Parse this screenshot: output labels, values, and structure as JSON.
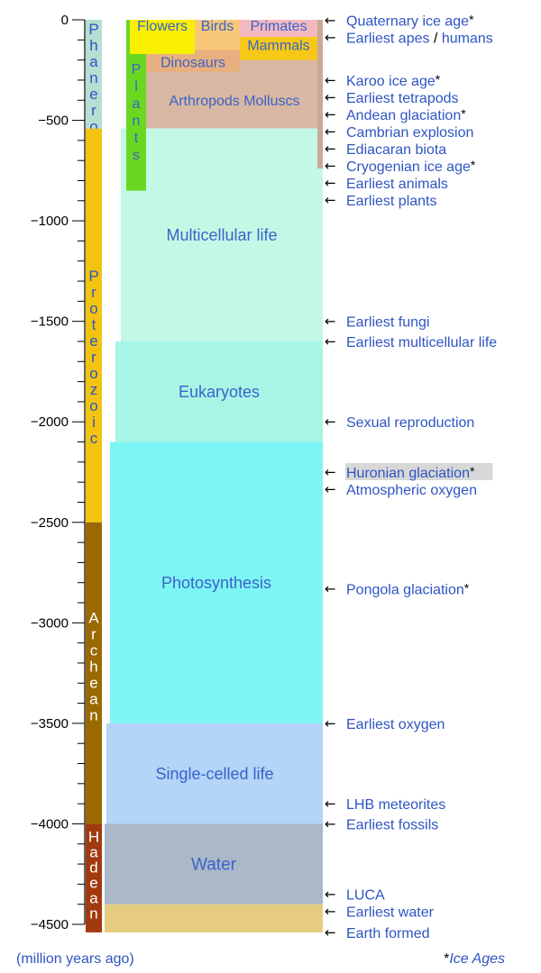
{
  "axis": {
    "ticks": [
      {
        "value": 0,
        "label": "0"
      },
      {
        "value": -500,
        "label": "−500"
      },
      {
        "value": -1000,
        "label": "−1000"
      },
      {
        "value": -1500,
        "label": "−1500"
      },
      {
        "value": -2000,
        "label": "−2000"
      },
      {
        "value": -2500,
        "label": "−2500"
      },
      {
        "value": -3000,
        "label": "−3000"
      },
      {
        "value": -3500,
        "label": "−3500"
      },
      {
        "value": -4000,
        "label": "−4000"
      },
      {
        "value": -4500,
        "label": "−4500"
      }
    ],
    "minor_step": 100,
    "range": [
      -4540,
      0
    ],
    "unit_label": "(million years ago)"
  },
  "eons": [
    {
      "name": "Phanerozoic",
      "start": -541,
      "end": 0,
      "color": "#b6dfd4",
      "text_color": "#2f55c2"
    },
    {
      "name": "Proterozoic",
      "start": -2500,
      "end": -541,
      "color": "#f2c40f",
      "text_color": "#2f55c2"
    },
    {
      "name": "Archean",
      "start": -4000,
      "end": -2500,
      "color": "#9a6a00",
      "text_color": "#ffffff"
    },
    {
      "name": "Hadean",
      "start": -4540,
      "end": -4000,
      "color": "#a23a10",
      "text_color": "#ffffff"
    }
  ],
  "regions": [
    {
      "label": "",
      "start": -4540,
      "end": -4400,
      "color": "#e6cc7e"
    },
    {
      "label": "Water",
      "start": -4400,
      "end": -4000,
      "color": "#aab8c8"
    },
    {
      "label": "Single-celled life",
      "start": -4000,
      "end": -3500,
      "color": "#b4d4f8"
    },
    {
      "label": "Photosynthesis",
      "start": -3500,
      "end": -2100,
      "color": "#7ef5f5"
    },
    {
      "label": "Eukaryotes",
      "start": -2100,
      "end": -1600,
      "color": "#a8f5e6"
    },
    {
      "label": "Multicellular life",
      "start": -1600,
      "end": -540,
      "color": "#c4f8e6"
    },
    {
      "label": "Arthropods Molluscs",
      "start": -540,
      "end": -170,
      "color": "#d8b8a2"
    },
    {
      "label": "Dinosaurs",
      "start": -260,
      "end": -66,
      "color": "#e8b080"
    },
    {
      "label": "Mammals",
      "start": -200,
      "end": 0,
      "color": "#f8c818"
    },
    {
      "label": "Plants",
      "start": -850,
      "end": 0,
      "color": "#6ad820"
    },
    {
      "label": "Flowers",
      "start": -170,
      "end": 0,
      "color": "#f8f000"
    },
    {
      "label": "Birds",
      "start": -150,
      "end": 0,
      "color": "#f8c878"
    },
    {
      "label": "Primates",
      "start": -85,
      "end": 0,
      "color": "#f4b8c0"
    }
  ],
  "events": [
    {
      "label": "Quaternary ice age",
      "value": -2.6,
      "ice_age": true,
      "color": "#2f55c2",
      "highlight": false
    },
    {
      "label": "Earliest apes",
      "label2": "humans",
      "value": -25,
      "ice_age": false,
      "color": "#2f55c2",
      "highlight": false
    },
    {
      "label": "Karoo ice age",
      "value": -300,
      "ice_age": true,
      "color": "#2f55c2",
      "highlight": false
    },
    {
      "label": "Earliest tetrapods",
      "value": -370,
      "ice_age": false,
      "color": "#2f55c2",
      "highlight": false
    },
    {
      "label": "Andean glaciation",
      "value": -445,
      "ice_age": true,
      "color": "#2f55c2",
      "highlight": false
    },
    {
      "label": "Cambrian explosion",
      "value": -530,
      "ice_age": false,
      "color": "#2f55c2",
      "highlight": false
    },
    {
      "label": "Ediacaran biota",
      "value": -610,
      "ice_age": false,
      "color": "#2f55c2",
      "highlight": false
    },
    {
      "label": "Cryogenian ice age",
      "value": -680,
      "ice_age": true,
      "color": "#2f55c2",
      "highlight": false
    },
    {
      "label": "Earliest animals",
      "value": -750,
      "ice_age": false,
      "color": "#2f55c2",
      "highlight": false
    },
    {
      "label": "Earliest plants",
      "value": -850,
      "ice_age": false,
      "color": "#2f55c2",
      "highlight": false
    },
    {
      "label": "Earliest fungi",
      "value": -1500,
      "ice_age": false,
      "color": "#2f55c2",
      "highlight": false
    },
    {
      "label": "Earliest multicellular life",
      "value": -1600,
      "ice_age": false,
      "color": "#2f55c2",
      "highlight": false
    },
    {
      "label": "Sexual reproduction",
      "value": -2000,
      "ice_age": false,
      "color": "#2f55c2",
      "highlight": false
    },
    {
      "label": "Huronian glaciation",
      "value": -2250,
      "ice_age": true,
      "color": "#2f55c2",
      "highlight": true
    },
    {
      "label": "Atmospheric oxygen",
      "value": -2300,
      "ice_age": false,
      "color": "#2f55c2",
      "highlight": false
    },
    {
      "label": "Pongola glaciation",
      "value": -2830,
      "ice_age": true,
      "color": "#2f55c2",
      "highlight": false
    },
    {
      "label": "Earliest oxygen",
      "value": -3500,
      "ice_age": false,
      "color": "#2f55c2",
      "highlight": false
    },
    {
      "label": "LHB meteorites",
      "value": -3900,
      "ice_age": false,
      "color": "#2f55c2",
      "highlight": false
    },
    {
      "label": "Earliest fossils",
      "value": -4000,
      "ice_age": false,
      "color": "#2f55c2",
      "highlight": false
    },
    {
      "label": "LUCA",
      "value": -4350,
      "ice_age": false,
      "color": "#7a4fc0",
      "highlight": false
    },
    {
      "label": "Earliest water",
      "value": -4400,
      "ice_age": false,
      "color": "#2f55c2",
      "highlight": false
    },
    {
      "label": "Earth formed",
      "value": -4540,
      "ice_age": false,
      "color": "#2f55c2",
      "highlight": false
    }
  ],
  "legend": {
    "star": "*",
    "ice_ages": "Ice Ages"
  },
  "colors": {
    "text_blue": "#2f55c2",
    "highlight_bg": "#d8d8d8",
    "axis": "#000000"
  }
}
